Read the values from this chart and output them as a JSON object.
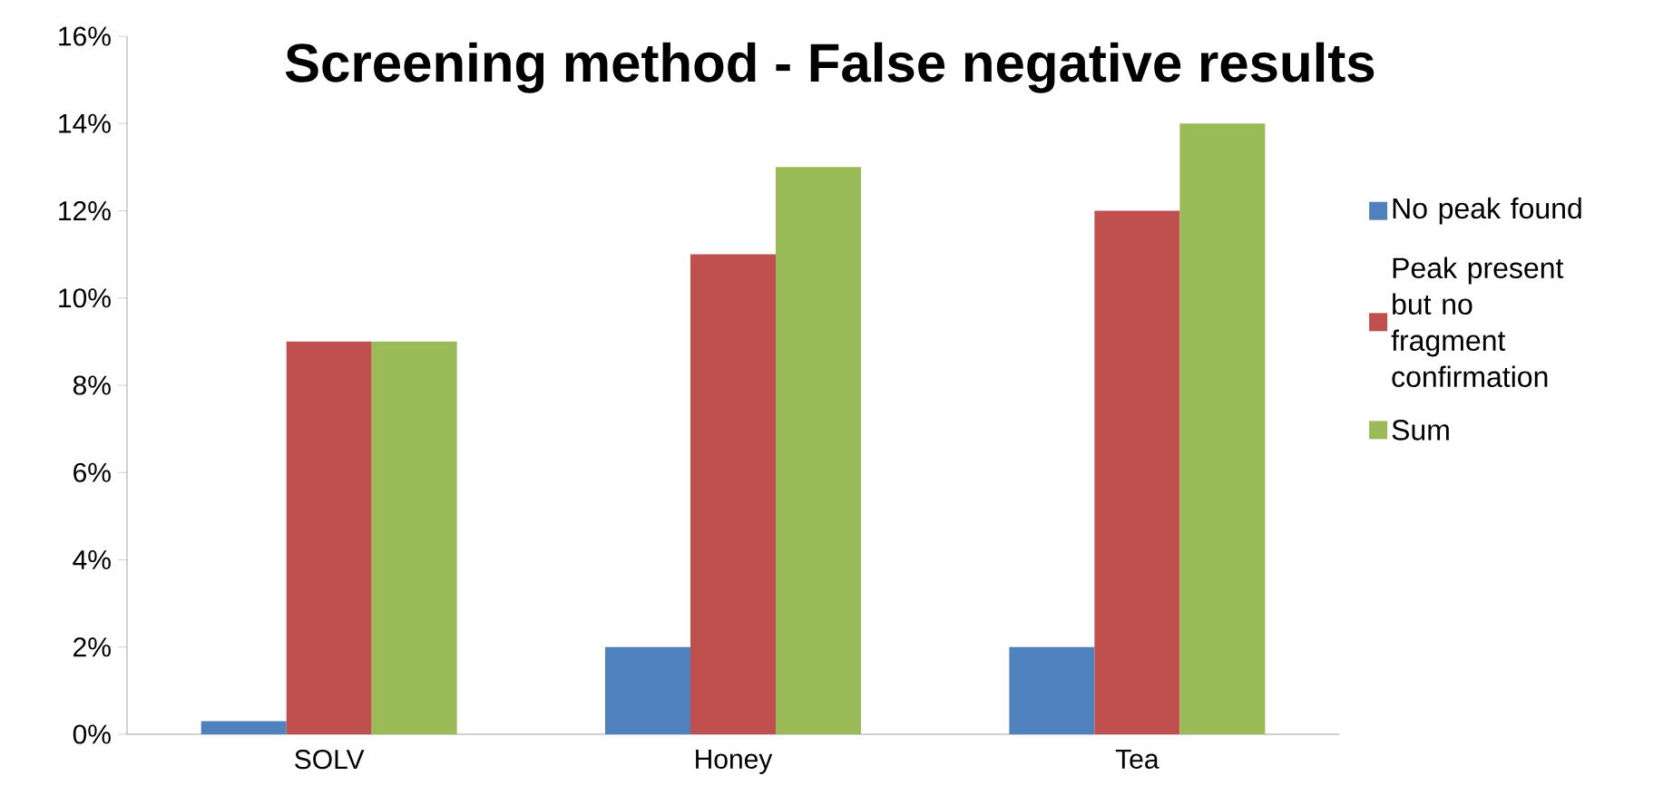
{
  "chart_data": {
    "type": "bar",
    "title": "Screening method - False negative results",
    "categories": [
      "SOLV",
      "Honey",
      "Tea"
    ],
    "series": [
      {
        "name": "No peak found",
        "color": "#4f81bd",
        "values": [
          0.3,
          2,
          2
        ]
      },
      {
        "name": "Peak present but no fragment confirmation",
        "color": "#c0504d",
        "values": [
          9,
          11,
          12
        ]
      },
      {
        "name": "Sum",
        "color": "#9bbb59",
        "values": [
          9,
          13,
          14
        ]
      }
    ],
    "ylim": [
      0,
      16
    ],
    "yticks": [
      {
        "value": 0,
        "label": "0%"
      },
      {
        "value": 2,
        "label": "2%"
      },
      {
        "value": 4,
        "label": "4%"
      },
      {
        "value": 6,
        "label": "6%"
      },
      {
        "value": 8,
        "label": "8%"
      },
      {
        "value": 10,
        "label": "10%"
      },
      {
        "value": 12,
        "label": "12%"
      },
      {
        "value": 14,
        "label": "14%"
      },
      {
        "value": 16,
        "label": "16%"
      }
    ],
    "legend": "right"
  }
}
